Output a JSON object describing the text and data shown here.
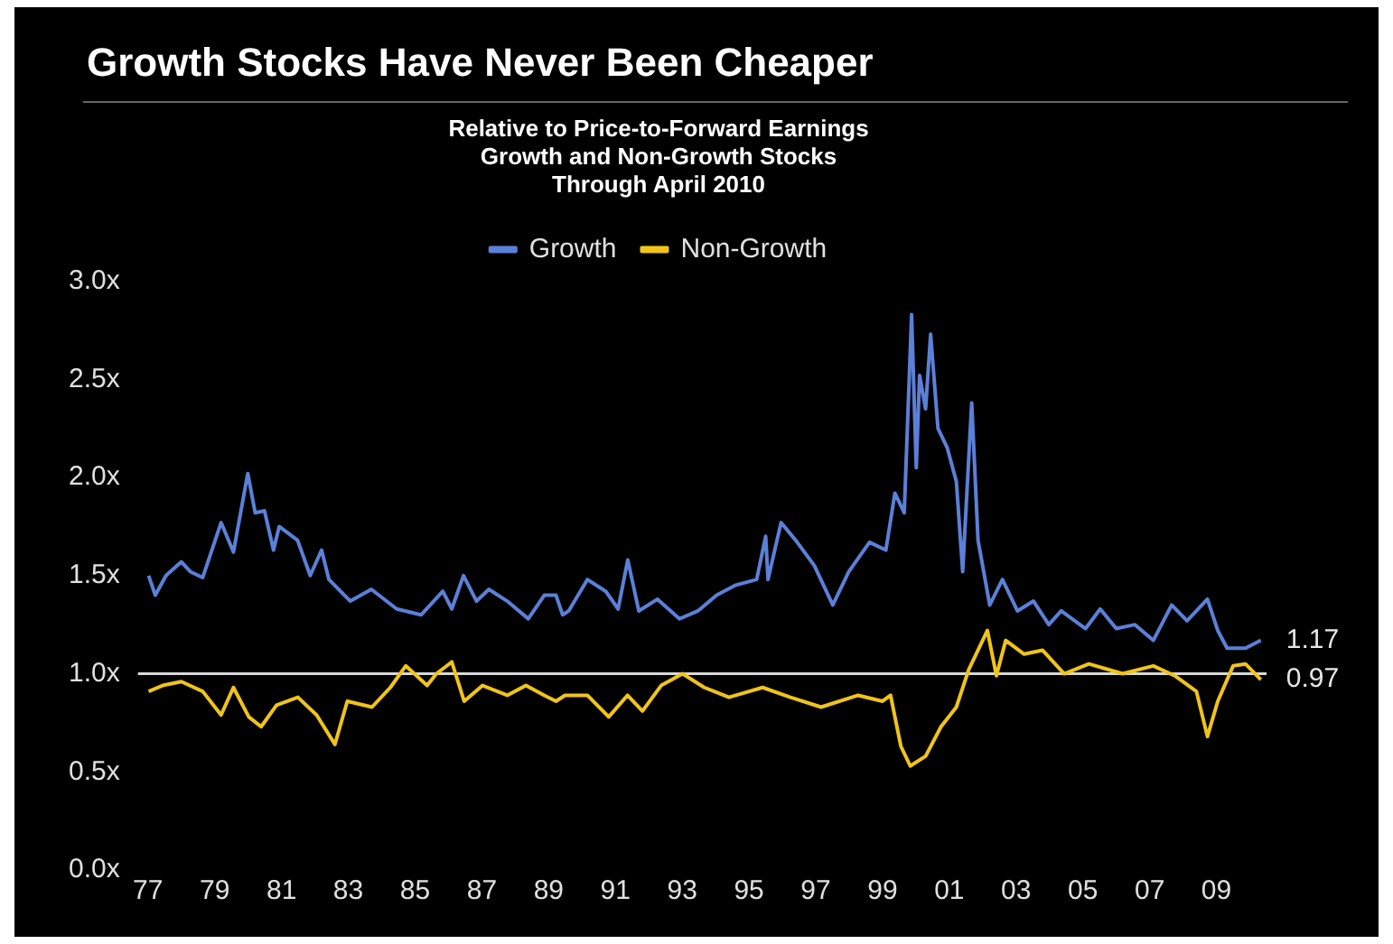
{
  "chart_data": {
    "type": "line",
    "title": "Growth Stocks Have Never Been Cheaper",
    "subtitle": "Relative to Price-to-Forward Earnings\nGrowth and Non-Growth Stocks\nThrough April 2010",
    "xlim": [
      1976.7,
      2010.5
    ],
    "xticks": [
      {
        "value": 1977,
        "label": "77"
      },
      {
        "value": 1979,
        "label": "79"
      },
      {
        "value": 1981,
        "label": "81"
      },
      {
        "value": 1983,
        "label": "83"
      },
      {
        "value": 1985,
        "label": "85"
      },
      {
        "value": 1987,
        "label": "87"
      },
      {
        "value": 1989,
        "label": "89"
      },
      {
        "value": 1991,
        "label": "91"
      },
      {
        "value": 1993,
        "label": "93"
      },
      {
        "value": 1995,
        "label": "95"
      },
      {
        "value": 1997,
        "label": "97"
      },
      {
        "value": 1999,
        "label": "99"
      },
      {
        "value": 2001,
        "label": "01"
      },
      {
        "value": 2003,
        "label": "03"
      },
      {
        "value": 2005,
        "label": "05"
      },
      {
        "value": 2007,
        "label": "07"
      },
      {
        "value": 2009,
        "label": "09"
      }
    ],
    "ylim": [
      0,
      3
    ],
    "yticks": [
      {
        "value": 0,
        "label": "0.0x"
      },
      {
        "value": 0.5,
        "label": "0.5x"
      },
      {
        "value": 1,
        "label": "1.0x"
      },
      {
        "value": 1.5,
        "label": "1.5x"
      },
      {
        "value": 2,
        "label": "2.0x"
      },
      {
        "value": 2.5,
        "label": "2.5x"
      },
      {
        "value": 3,
        "label": "3.0x"
      }
    ],
    "grid": false,
    "legend": "top",
    "ref_lines": [
      {
        "axis": "y",
        "value": 1,
        "color": "#d8d8d8"
      }
    ],
    "annotations": [
      {
        "text": "1.17",
        "x": 2010.33,
        "y": 1.17
      },
      {
        "text": "0.97",
        "x": 2010.33,
        "y": 0.97
      }
    ],
    "series": [
      {
        "name": "Growth",
        "color": "#5b80d8",
        "x": [
          1977.02,
          1977.22,
          1977.54,
          1978.0,
          1978.27,
          1978.64,
          1979.19,
          1979.56,
          1979.99,
          1980.21,
          1980.49,
          1980.76,
          1980.93,
          1981.48,
          1981.86,
          1982.2,
          1982.42,
          1983.06,
          1983.69,
          1984.45,
          1985.18,
          1985.83,
          1986.1,
          1986.45,
          1986.84,
          1987.21,
          1987.76,
          1988.39,
          1988.87,
          1989.22,
          1989.42,
          1989.6,
          1990.16,
          1990.71,
          1991.08,
          1991.37,
          1991.7,
          1992.26,
          1992.92,
          1993.47,
          1994.03,
          1994.58,
          1995.23,
          1995.5,
          1995.57,
          1995.96,
          1996.4,
          1996.96,
          1997.51,
          1997.99,
          1998.61,
          1999.1,
          1999.37,
          1999.65,
          1999.87,
          2000.01,
          2000.11,
          2000.29,
          2000.44,
          2000.66,
          2000.94,
          2001.21,
          2001.4,
          2001.67,
          2001.86,
          2002.21,
          2002.59,
          2003.04,
          2003.52,
          2003.98,
          2004.35,
          2005.08,
          2005.52,
          2006.0,
          2006.56,
          2007.11,
          2007.66,
          2008.12,
          2008.73,
          2009.04,
          2009.32,
          2009.87,
          2010.33
        ],
        "values": [
          1.5,
          1.4,
          1.5,
          1.57,
          1.52,
          1.49,
          1.77,
          1.62,
          2.02,
          1.82,
          1.83,
          1.63,
          1.75,
          1.68,
          1.5,
          1.63,
          1.48,
          1.37,
          1.43,
          1.33,
          1.3,
          1.42,
          1.33,
          1.5,
          1.37,
          1.43,
          1.37,
          1.28,
          1.4,
          1.4,
          1.3,
          1.32,
          1.48,
          1.42,
          1.33,
          1.58,
          1.32,
          1.38,
          1.28,
          1.32,
          1.4,
          1.45,
          1.48,
          1.7,
          1.48,
          1.77,
          1.68,
          1.55,
          1.35,
          1.52,
          1.67,
          1.63,
          1.92,
          1.82,
          2.83,
          2.05,
          2.52,
          2.35,
          2.73,
          2.25,
          2.15,
          1.98,
          1.52,
          2.38,
          1.68,
          1.35,
          1.48,
          1.32,
          1.37,
          1.25,
          1.32,
          1.23,
          1.33,
          1.23,
          1.25,
          1.17,
          1.35,
          1.27,
          1.38,
          1.22,
          1.13,
          1.13,
          1.17
        ]
      },
      {
        "name": "Non-Growth",
        "color": "#f0c419",
        "x": [
          1977.02,
          1977.44,
          1978.0,
          1978.64,
          1979.19,
          1979.56,
          1980.02,
          1980.39,
          1980.85,
          1981.49,
          1982.05,
          1982.6,
          1982.97,
          1983.71,
          1984.26,
          1984.72,
          1985.36,
          1985.64,
          1986.1,
          1986.47,
          1987.02,
          1987.76,
          1988.32,
          1988.87,
          1989.22,
          1989.49,
          1990.16,
          1990.8,
          1991.36,
          1991.81,
          1992.37,
          1993.01,
          1993.66,
          1994.4,
          1995.41,
          1996.24,
          1997.16,
          1998.27,
          1999.0,
          1999.24,
          1999.55,
          1999.83,
          2000.29,
          2000.75,
          2001.21,
          2001.58,
          2002.14,
          2002.41,
          2002.69,
          2003.24,
          2003.79,
          2004.44,
          2005.18,
          2006.19,
          2007.11,
          2007.75,
          2008.4,
          2008.73,
          2009.04,
          2009.5,
          2009.87,
          2010.33
        ],
        "values": [
          0.91,
          0.94,
          0.96,
          0.91,
          0.79,
          0.93,
          0.78,
          0.73,
          0.84,
          0.88,
          0.79,
          0.64,
          0.86,
          0.83,
          0.93,
          1.04,
          0.94,
          1.0,
          1.06,
          0.86,
          0.94,
          0.89,
          0.94,
          0.89,
          0.86,
          0.89,
          0.89,
          0.78,
          0.89,
          0.81,
          0.94,
          1.0,
          0.93,
          0.88,
          0.93,
          0.88,
          0.83,
          0.89,
          0.86,
          0.89,
          0.63,
          0.53,
          0.58,
          0.73,
          0.83,
          1.02,
          1.22,
          0.99,
          1.17,
          1.1,
          1.12,
          1.0,
          1.05,
          1.0,
          1.04,
          0.99,
          0.91,
          0.68,
          0.86,
          1.04,
          1.05,
          0.97
        ]
      }
    ]
  }
}
